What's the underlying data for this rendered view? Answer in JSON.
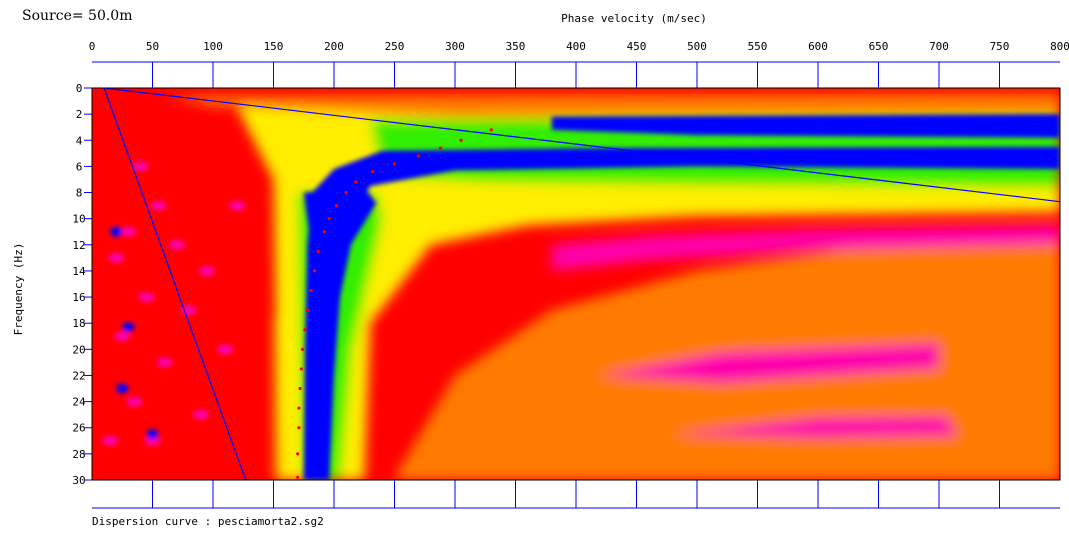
{
  "header": {
    "source_label": "Source= 50.0m"
  },
  "footer": {
    "caption": "Dispersion curve : pesciamorta2.sg2"
  },
  "colors": {
    "background": "#ff0000",
    "magenta": "#ff00aa",
    "orange": "#ff7a00",
    "yellow": "#ffee00",
    "green": "#33ee00",
    "blue": "#0000ff",
    "picks": "#ff0000",
    "aliasing_lines": "#0000ff"
  },
  "chart_data": {
    "type": "heatmap",
    "title": "",
    "xlabel": "Phase velocity (m/sec)",
    "ylabel": "Frequency (Hz)",
    "xlim": [
      0,
      800
    ],
    "ylim": [
      0,
      30
    ],
    "x_ticks": [
      "0",
      "50",
      "100",
      "150",
      "200",
      "250",
      "300",
      "350",
      "400",
      "450",
      "500",
      "550",
      "600",
      "650",
      "700",
      "750",
      "800"
    ],
    "y_ticks": [
      "0",
      "2",
      "4",
      "6",
      "8",
      "10",
      "12",
      "14",
      "16",
      "18",
      "20",
      "22",
      "24",
      "26",
      "28",
      "30"
    ],
    "grid": false,
    "y_axis_inverted": true,
    "x_axis_position": "top",
    "dispersion_picks": {
      "x": [
        330,
        305,
        288,
        270,
        250,
        232,
        218,
        210,
        202,
        196,
        192,
        187,
        184,
        181,
        178,
        176,
        174,
        173,
        172,
        171,
        171,
        170,
        170
      ],
      "y": [
        3.2,
        4.0,
        4.6,
        5.2,
        5.8,
        6.4,
        7.2,
        8.0,
        9.0,
        10.0,
        11.0,
        12.5,
        14.0,
        15.5,
        17.0,
        18.5,
        20.0,
        21.5,
        23.0,
        24.5,
        26.0,
        28.0,
        29.8
      ]
    },
    "aliasing_lines": [
      {
        "x": [
          10,
          800
        ],
        "y": [
          0,
          8.7
        ]
      },
      {
        "x": [
          10,
          127
        ],
        "y": [
          0,
          30
        ]
      }
    ]
  }
}
